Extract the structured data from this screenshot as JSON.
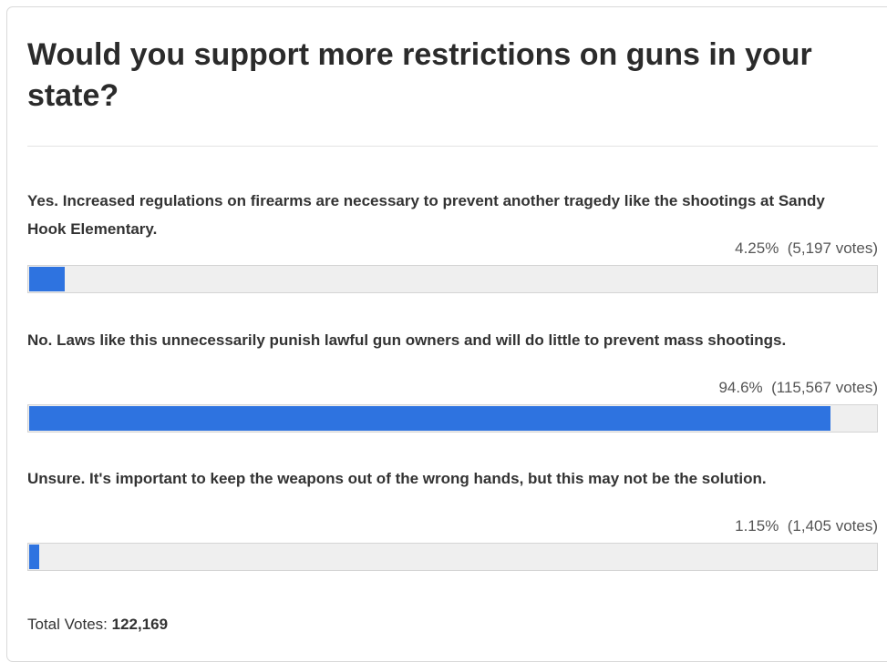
{
  "poll": {
    "question": "Would you support more restrictions on guns in your state?",
    "options": [
      {
        "text": "Yes. Increased regulations on firearms are necessary to prevent another tragedy like the shootings at Sandy Hook Elementary.",
        "percent_label": "4.25%",
        "votes_label": "(5,197 votes)",
        "fraction": 0.0425
      },
      {
        "text": "No. Laws like this unnecessarily punish lawful gun owners and will do little to prevent mass shootings.",
        "percent_label": "94.6%",
        "votes_label": "(115,567 votes)",
        "fraction": 0.946
      },
      {
        "text": "Unsure. It's important to keep the weapons out of the wrong hands, but this may not be the solution.",
        "percent_label": "1.15%",
        "votes_label": "(1,405 votes)",
        "fraction": 0.0115
      }
    ],
    "total_label": "Total Votes:",
    "total_value": "122,169"
  },
  "colors": {
    "bar_fill": "#2e73e0",
    "bar_track": "#efefef"
  }
}
